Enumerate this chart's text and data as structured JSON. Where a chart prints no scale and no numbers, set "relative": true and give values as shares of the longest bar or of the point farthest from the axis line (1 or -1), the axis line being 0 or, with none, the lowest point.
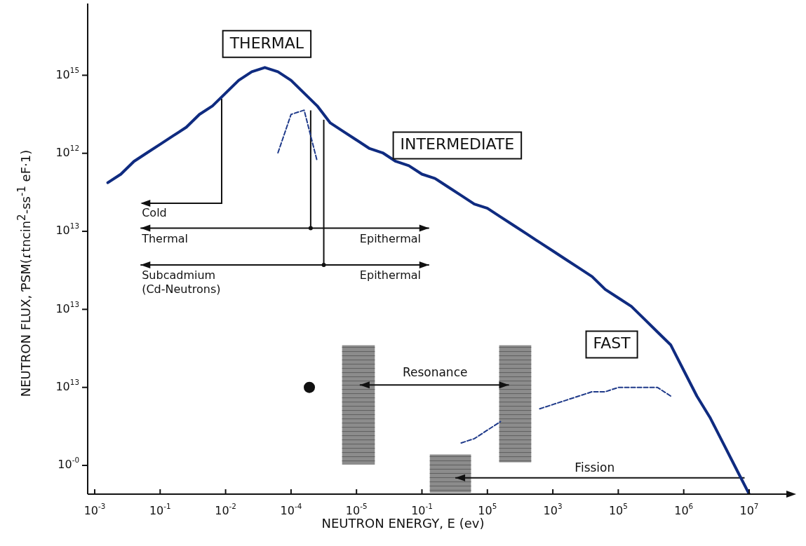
{
  "chart_data": {
    "type": "line",
    "relative": true,
    "xlabel": "NEUTRON ENERGY, E (ev)",
    "ylabel": "NEUTRON FLUX, ƤSM(ɾtncin$^{2}$-ss$^{-1}$ eF·1)",
    "categories": [
      "10$^{-3}$",
      null,
      null,
      null,
      null,
      "10$^{-1}$",
      null,
      null,
      null,
      null,
      "10$^{-2}$",
      null,
      null,
      null,
      null,
      "10$^{-4}$",
      null,
      null,
      null,
      null,
      "10$^{-5}$",
      null,
      null,
      null,
      null,
      "10$^{-1}$",
      null,
      null,
      null,
      null,
      "10$^{5}$",
      null,
      null,
      null,
      null,
      "10$^{3}$",
      null,
      null,
      null,
      null,
      "10$^{5}$",
      null,
      null,
      null,
      null,
      "10$^{6}$",
      null,
      null,
      null,
      null,
      "10$^{7}$"
    ],
    "grid": false,
    "legend": false,
    "marker": "none",
    "line_style": "solid",
    "annotations": [
      "THERMAL",
      "INTERMEDIATE",
      "FAST",
      "Cold",
      "Thermal",
      "Epithermal",
      "Subcadmium\n(Cd-Neutrons)",
      "Epithermal",
      "Resonance",
      "Fission",
      "10$^{-0}$",
      "10$^{13}$",
      "10$^{13}$",
      "10$^{13}$",
      "10$^{12}$",
      "10$^{15}$"
    ],
    "series": [
      {
        "color": "#0f2b80",
        "values": [
          null,
          0.73,
          0.75,
          0.78,
          0.8,
          0.82,
          0.84,
          0.86,
          0.89,
          0.91,
          0.94,
          0.97,
          0.99,
          1.0,
          0.99,
          0.97,
          0.94,
          0.91,
          0.87,
          0.85,
          0.83,
          0.81,
          0.8,
          0.78,
          0.77,
          0.75,
          0.74,
          0.72,
          0.7,
          0.68,
          0.67,
          0.65,
          0.63,
          0.61,
          0.59,
          0.57,
          0.55,
          0.53,
          0.51,
          0.48,
          0.46,
          0.44,
          0.41,
          0.38,
          0.35,
          0.29,
          0.23,
          0.18,
          0.12,
          0.06,
          0.0
        ]
      },
      {
        "color": "#1f3a8a",
        "line_style": "dashed",
        "values": [
          null,
          null,
          null,
          null,
          null,
          null,
          null,
          null,
          null,
          null,
          null,
          null,
          null,
          null,
          0.8,
          0.89,
          0.9,
          0.78,
          null,
          null,
          null,
          null,
          null,
          null,
          null,
          null,
          null,
          null,
          null,
          null,
          null,
          null,
          null,
          null,
          null,
          null,
          null,
          null,
          null,
          null,
          null,
          null,
          null,
          null,
          null,
          null,
          null,
          null,
          null,
          null,
          null
        ]
      },
      {
        "color": "#1f3a8a",
        "line_style": "dashed",
        "values": [
          null,
          null,
          null,
          null,
          null,
          null,
          null,
          null,
          null,
          null,
          null,
          null,
          null,
          null,
          null,
          null,
          null,
          null,
          null,
          null,
          null,
          null,
          null,
          null,
          null,
          null,
          null,
          null,
          0.12,
          0.13,
          0.15,
          0.17,
          null,
          null,
          0.2,
          0.21,
          0.22,
          0.23,
          0.24,
          0.24,
          0.25,
          0.25,
          0.25,
          0.25,
          0.23,
          null,
          null,
          null,
          null,
          null,
          null
        ]
      }
    ]
  }
}
